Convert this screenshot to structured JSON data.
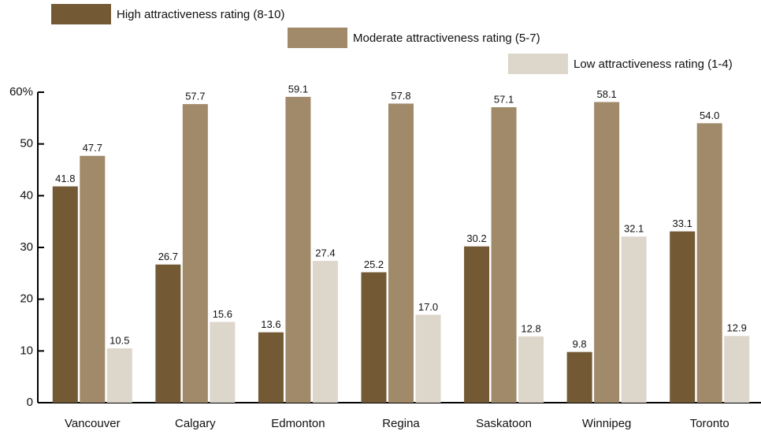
{
  "chart_data": {
    "type": "bar",
    "categories": [
      "Vancouver",
      "Calgary",
      "Edmonton",
      "Regina",
      "Saskatoon",
      "Winnipeg",
      "Toronto"
    ],
    "series": [
      {
        "name": "High attractiveness rating (8-10)",
        "color": "#735a35",
        "values": [
          41.8,
          26.7,
          13.6,
          25.2,
          30.2,
          9.8,
          33.1
        ],
        "value_labels": [
          "41.8",
          "26.7",
          "13.6",
          "25.2",
          "30.2",
          "9.8",
          "33.1"
        ]
      },
      {
        "name": "Moderate attractiveness rating (5-7)",
        "color": "#a08a6a",
        "values": [
          47.7,
          57.7,
          59.1,
          57.8,
          57.1,
          58.1,
          54.0
        ],
        "value_labels": [
          "47.7",
          "57.7",
          "59.1",
          "57.8",
          "57.1",
          "58.1",
          "54.0"
        ]
      },
      {
        "name": "Low attractiveness rating (1-4)",
        "color": "#ddd6cb",
        "values": [
          10.5,
          15.6,
          27.4,
          17.0,
          12.8,
          32.1,
          12.9
        ],
        "value_labels": [
          "10.5",
          "15.6",
          "27.4",
          "17.0",
          "12.8",
          "32.1",
          "12.9"
        ]
      }
    ],
    "ylim": [
      0,
      60
    ],
    "yticks": [
      0,
      10,
      20,
      30,
      40,
      50,
      {
        "value": 60,
        "label": "60%"
      }
    ],
    "grid": false
  }
}
